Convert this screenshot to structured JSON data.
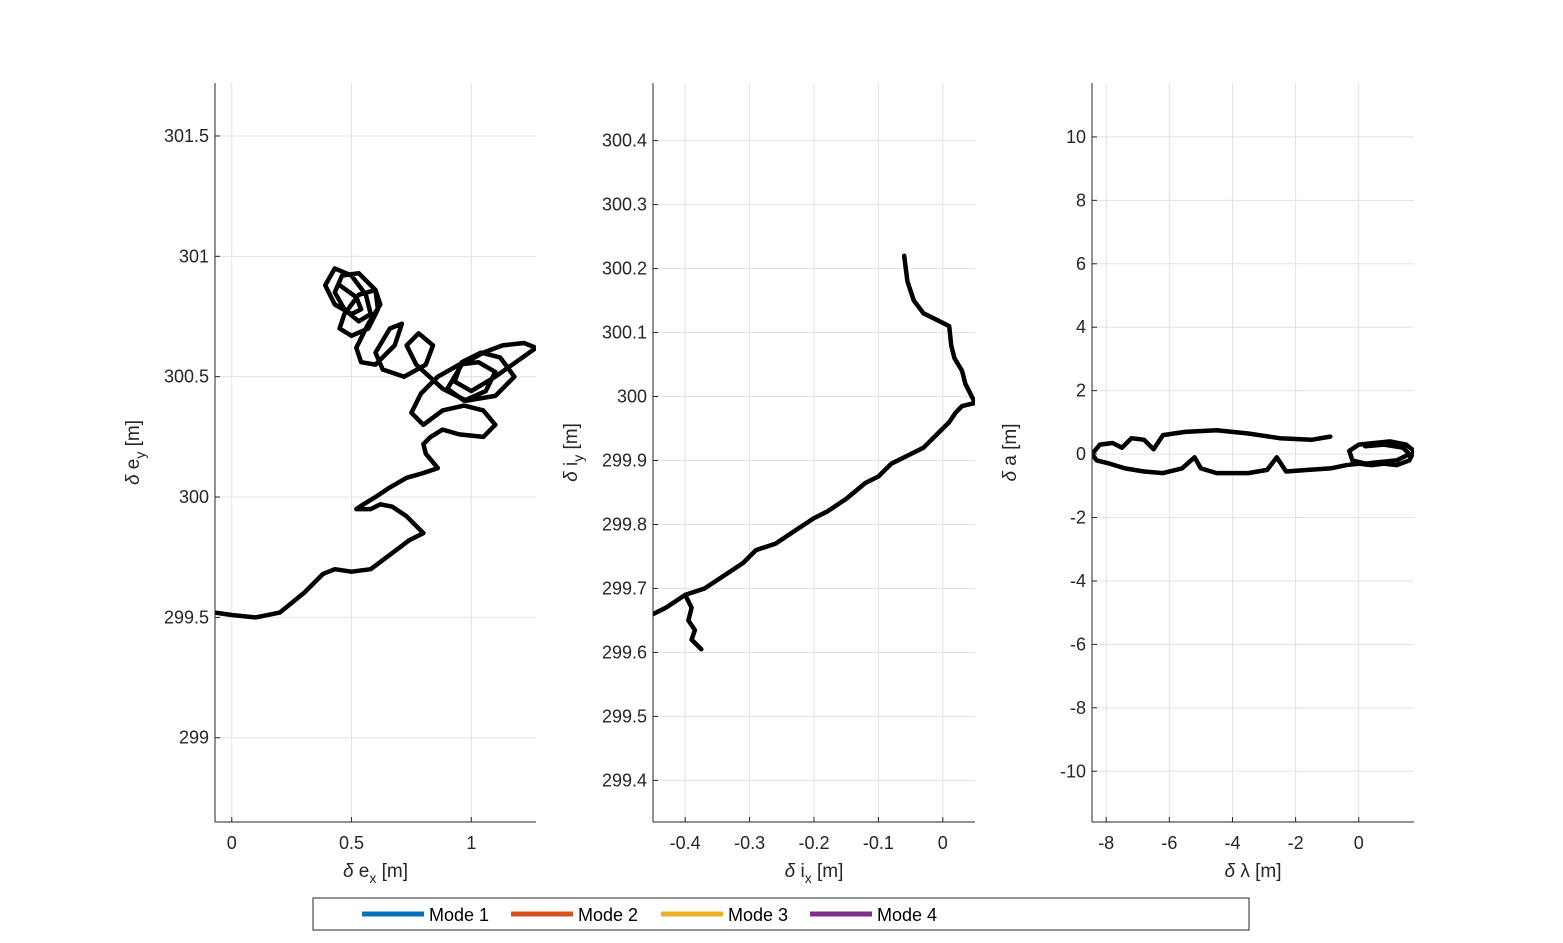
{
  "chart_data": [
    {
      "type": "line",
      "xlabel": "δ e_x [m]",
      "ylabel": "δ e_y [m]",
      "xlim": [
        -0.07,
        1.27
      ],
      "ylim": [
        298.65,
        301.72
      ],
      "xticks": [
        0,
        0.5,
        1
      ],
      "xtick_labels": [
        "0",
        "0.5",
        "1"
      ],
      "yticks": [
        299,
        299.5,
        300,
        300.5,
        301,
        301.5
      ],
      "ytick_labels": [
        "299",
        "299.5",
        "300",
        "300.5",
        "301",
        "301.5"
      ],
      "grid": true,
      "series": [
        {
          "color": "#000000",
          "x": [
            -0.07,
            0.0,
            0.1,
            0.2,
            0.3,
            0.38,
            0.43,
            0.5,
            0.58,
            0.66,
            0.74,
            0.8,
            0.73,
            0.67,
            0.62,
            0.58,
            0.52,
            0.55,
            0.6,
            0.66,
            0.73,
            0.8,
            0.86,
            0.81,
            0.8,
            0.83,
            0.88,
            0.95,
            1.05,
            1.1,
            1.05,
            0.97,
            0.88,
            0.8,
            0.75,
            0.79,
            0.86,
            0.95,
            1.03,
            1.1,
            1.06,
            0.97,
            0.9,
            0.96,
            1.05,
            1.13,
            1.22,
            1.27,
            1.2,
            1.1,
            1.0,
            0.93,
            0.96,
            1.04,
            1.12,
            1.18,
            1.1,
            0.98,
            0.88,
            0.77,
            0.73,
            0.78,
            0.84,
            0.81,
            0.72,
            0.63,
            0.6,
            0.66,
            0.71,
            0.68,
            0.6,
            0.54,
            0.52,
            0.57,
            0.62,
            0.6,
            0.53,
            0.47,
            0.45,
            0.5,
            0.57,
            0.61,
            0.6,
            0.53,
            0.46,
            0.43,
            0.47,
            0.53,
            0.58,
            0.56,
            0.5,
            0.43,
            0.39,
            0.43,
            0.5,
            0.54,
            0.52,
            0.45
          ],
          "y": [
            299.52,
            299.51,
            299.5,
            299.52,
            299.6,
            299.68,
            299.7,
            299.69,
            299.7,
            299.76,
            299.82,
            299.85,
            299.92,
            299.96,
            299.97,
            299.95,
            299.95,
            299.97,
            300.0,
            300.04,
            300.08,
            300.1,
            300.12,
            300.18,
            300.22,
            300.25,
            300.28,
            300.26,
            300.25,
            300.3,
            300.36,
            300.38,
            300.36,
            300.3,
            300.35,
            300.43,
            300.5,
            300.55,
            300.56,
            300.52,
            300.44,
            300.4,
            300.45,
            300.55,
            300.6,
            300.63,
            300.64,
            300.62,
            300.57,
            300.5,
            300.44,
            300.48,
            300.56,
            300.6,
            300.58,
            300.5,
            300.42,
            300.4,
            300.45,
            300.55,
            300.63,
            300.68,
            300.63,
            300.55,
            300.5,
            300.53,
            300.6,
            300.7,
            300.72,
            300.63,
            300.55,
            300.56,
            300.62,
            300.72,
            300.8,
            300.86,
            300.84,
            300.76,
            300.7,
            300.67,
            300.7,
            300.78,
            300.86,
            300.93,
            300.92,
            300.85,
            300.78,
            300.73,
            300.76,
            300.84,
            300.92,
            300.95,
            300.88,
            300.8,
            300.76,
            300.78,
            300.83,
            300.88
          ]
        }
      ]
    },
    {
      "type": "line",
      "xlabel": "δ i_x [m]",
      "ylabel": "δ i_y [m]",
      "xlim": [
        -0.45,
        0.05
      ],
      "ylim": [
        299.335,
        300.49
      ],
      "xticks": [
        -0.4,
        -0.3,
        -0.2,
        -0.1,
        0
      ],
      "xtick_labels": [
        "-0.4",
        "-0.3",
        "-0.2",
        "-0.1",
        "0"
      ],
      "yticks": [
        299.4,
        299.5,
        299.6,
        299.7,
        299.8,
        299.9,
        300.0,
        300.1,
        300.2,
        300.3,
        300.4
      ],
      "ytick_labels": [
        "299.4",
        "299.5",
        "299.6",
        "299.7",
        "299.8",
        "299.9",
        "300",
        "300.1",
        "300.2",
        "300.3",
        "300.4"
      ],
      "grid": true,
      "series": [
        {
          "color": "#000000",
          "x": [
            -0.06,
            -0.055,
            -0.045,
            -0.03,
            -0.01,
            0.01,
            0.013,
            0.018,
            0.03,
            0.035,
            0.05,
            0.03,
            0.02,
            0.01,
            -0.01,
            -0.03,
            -0.05,
            -0.08,
            -0.1,
            -0.12,
            -0.15,
            -0.18,
            -0.2,
            -0.23,
            -0.26,
            -0.29,
            -0.31,
            -0.34,
            -0.37,
            -0.4,
            -0.43,
            -0.45
          ],
          "y": [
            300.22,
            300.18,
            300.15,
            300.13,
            300.12,
            300.11,
            300.08,
            300.06,
            300.04,
            300.02,
            299.99,
            299.985,
            299.975,
            299.96,
            299.94,
            299.92,
            299.91,
            299.895,
            299.875,
            299.865,
            299.84,
            299.82,
            299.81,
            299.79,
            299.77,
            299.76,
            299.74,
            299.72,
            299.7,
            299.69,
            299.67,
            299.66
          ]
        },
        {
          "color": "#000000",
          "x": [
            -0.4,
            -0.39,
            -0.395,
            -0.385,
            -0.39,
            -0.38,
            -0.375
          ],
          "y": [
            299.69,
            299.67,
            299.65,
            299.635,
            299.62,
            299.61,
            299.605
          ]
        }
      ]
    },
    {
      "type": "line",
      "xlabel": "δ λ [m]",
      "ylabel": "δ a [m]",
      "xlim": [
        -8.45,
        1.75
      ],
      "ylim": [
        -11.6,
        11.7
      ],
      "xticks": [
        -8,
        -6,
        -4,
        -2,
        0
      ],
      "xtick_labels": [
        "-8",
        "-6",
        "-4",
        "-2",
        "0"
      ],
      "yticks": [
        -10,
        -8,
        -6,
        -4,
        -2,
        0,
        2,
        4,
        6,
        8,
        10
      ],
      "ytick_labels": [
        "-10",
        "-8",
        "-6",
        "-4",
        "-2",
        "0",
        "2",
        "4",
        "6",
        "8",
        "10"
      ],
      "grid": true,
      "series": [
        {
          "color": "#000000",
          "x": [
            -0.9,
            -1.5,
            -2.5,
            -3.5,
            -4.5,
            -5.5,
            -6.2,
            -6.5,
            -6.8,
            -7.2,
            -7.5,
            -7.8,
            -8.2,
            -8.45,
            -8.3,
            -7.9,
            -7.4,
            -6.8,
            -6.2,
            -5.6,
            -5.2,
            -5.0,
            -4.5,
            -3.5,
            -2.9,
            -2.6,
            -2.3,
            -1.6,
            -0.9,
            -0.4,
            0.0,
            0.4,
            0.8,
            1.2,
            1.6,
            1.75,
            1.5,
            1.0,
            0.5,
            0.0,
            -0.3,
            -0.2,
            0.2,
            0.7,
            1.2,
            1.6,
            1.4,
            0.8,
            0.2
          ],
          "y": [
            0.55,
            0.45,
            0.5,
            0.65,
            0.75,
            0.7,
            0.6,
            0.15,
            0.45,
            0.5,
            0.2,
            0.35,
            0.3,
            0.0,
            -0.2,
            -0.3,
            -0.45,
            -0.55,
            -0.6,
            -0.45,
            -0.1,
            -0.45,
            -0.6,
            -0.6,
            -0.5,
            -0.1,
            -0.55,
            -0.5,
            -0.45,
            -0.35,
            -0.3,
            -0.35,
            -0.3,
            -0.35,
            -0.2,
            0.1,
            0.3,
            0.4,
            0.35,
            0.3,
            0.1,
            -0.2,
            -0.3,
            -0.25,
            -0.2,
            0.0,
            0.2,
            0.3,
            0.25
          ]
        }
      ]
    }
  ],
  "legend": {
    "entries": [
      {
        "label": "Mode 1",
        "color": "#0072BD"
      },
      {
        "label": "Mode 2",
        "color": "#D95319"
      },
      {
        "label": "Mode 3",
        "color": "#EDB120"
      },
      {
        "label": "Mode 4",
        "color": "#7E2F8E"
      }
    ]
  }
}
